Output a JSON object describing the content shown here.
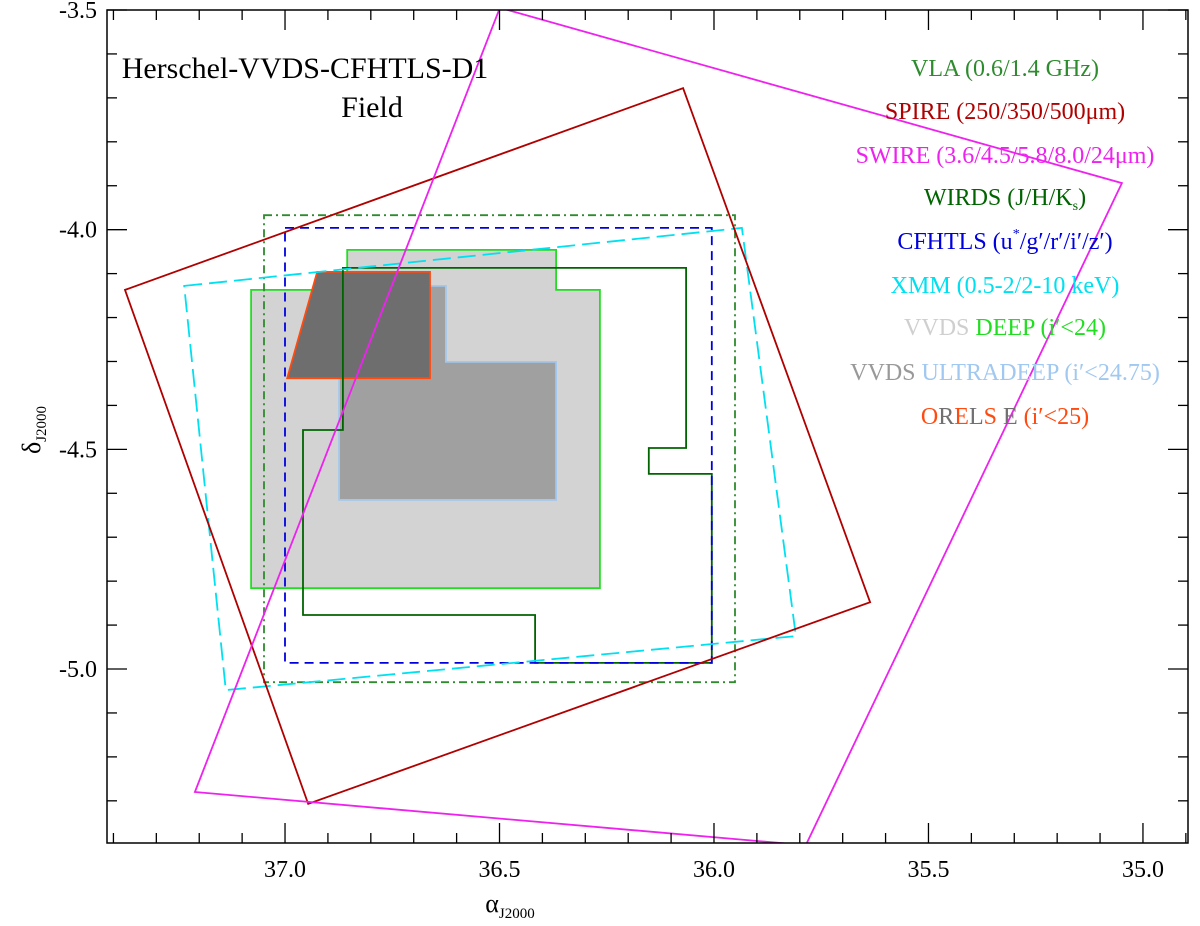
{
  "chart_data": {
    "type": "footprint-map",
    "title_lines": [
      "Herschel-VVDS-CFHTLS-D1",
      "Field"
    ],
    "xlabel": {
      "main": "α",
      "sub": "J2000"
    },
    "ylabel": {
      "main": "δ",
      "sub": "J2000"
    },
    "xlim": [
      37.415,
      34.895
    ],
    "ylim": [
      -5.396,
      -3.5
    ],
    "x_ticks": [
      37.0,
      36.5,
      36.0,
      35.5,
      35.0
    ],
    "x_tick_labels": [
      "37.0",
      "36.5",
      "36.0",
      "35.5",
      "35.0"
    ],
    "y_ticks": [
      -3.5,
      -4.0,
      -4.5,
      -5.0
    ],
    "y_tick_labels": [
      "-3.5",
      "-4.0",
      "-4.5",
      "-5.0"
    ],
    "minor_tick_step": 0.1,
    "grid": false,
    "legend_position": "top-right",
    "regions": [
      {
        "name": "vvds-deep",
        "fill": "#d3d3d3",
        "stroke": "#22dd22",
        "dash": "",
        "points": [
          [
            37.079,
            -4.137
          ],
          [
            36.855,
            -4.137
          ],
          [
            36.855,
            -4.046
          ],
          [
            36.368,
            -4.046
          ],
          [
            36.368,
            -4.137
          ],
          [
            36.266,
            -4.137
          ],
          [
            36.266,
            -4.816
          ],
          [
            37.079,
            -4.816
          ]
        ]
      },
      {
        "name": "vvds-ultradeep",
        "fill": "#a0a0a0",
        "stroke": "#a0c8f0",
        "dash": "",
        "points": [
          [
            36.874,
            -4.128
          ],
          [
            36.625,
            -4.128
          ],
          [
            36.625,
            -4.301
          ],
          [
            36.368,
            -4.301
          ],
          [
            36.368,
            -4.615
          ],
          [
            36.874,
            -4.615
          ]
        ]
      },
      {
        "name": "orelse",
        "fill": "#6e6e6e",
        "stroke": "#ff4a10",
        "dash": "",
        "points": [
          [
            36.925,
            -4.096
          ],
          [
            36.662,
            -4.096
          ],
          [
            36.662,
            -4.338
          ],
          [
            36.995,
            -4.338
          ]
        ]
      },
      {
        "name": "wirds",
        "fill": "none",
        "stroke": "#006400",
        "dash": "",
        "points": [
          [
            36.865,
            -4.087
          ],
          [
            36.065,
            -4.087
          ],
          [
            36.065,
            -4.497
          ],
          [
            36.152,
            -4.497
          ],
          [
            36.152,
            -4.556
          ],
          [
            36.005,
            -4.556
          ],
          [
            36.005,
            -4.986
          ],
          [
            36.417,
            -4.986
          ],
          [
            36.417,
            -4.877
          ],
          [
            36.958,
            -4.877
          ],
          [
            36.958,
            -4.456
          ],
          [
            36.865,
            -4.456
          ]
        ]
      },
      {
        "name": "vla",
        "fill": "none",
        "stroke": "#2e8b2e",
        "dash": "8 4 2 4",
        "points": [
          [
            37.049,
            -3.967
          ],
          [
            35.951,
            -3.967
          ],
          [
            35.951,
            -5.03
          ],
          [
            37.049,
            -5.03
          ]
        ]
      },
      {
        "name": "cfhtls",
        "fill": "none",
        "stroke": "#0000dd",
        "dash": "9 6",
        "points": [
          [
            37.0,
            -3.996
          ],
          [
            36.005,
            -3.996
          ],
          [
            36.005,
            -4.986
          ],
          [
            37.0,
            -4.986
          ]
        ]
      },
      {
        "name": "xmm",
        "fill": "none",
        "stroke": "#00e0f0",
        "dash": "18 7",
        "points": [
          [
            37.235,
            -4.128
          ],
          [
            35.935,
            -3.996
          ],
          [
            35.809,
            -4.925
          ],
          [
            37.138,
            -5.048
          ]
        ]
      },
      {
        "name": "spire",
        "fill": "none",
        "stroke": "#b00000",
        "dash": "",
        "points": [
          [
            37.373,
            -4.137
          ],
          [
            36.072,
            -3.678
          ],
          [
            35.636,
            -4.848
          ],
          [
            36.946,
            -5.307
          ]
        ]
      },
      {
        "name": "swire",
        "fill": "none",
        "stroke": "#ee22ee",
        "dash": "",
        "points": [
          [
            36.499,
            -3.495
          ],
          [
            35.049,
            -3.894
          ],
          [
            35.786,
            -5.401
          ],
          [
            37.21,
            -5.28
          ]
        ]
      }
    ],
    "legend": [
      {
        "parts": [
          {
            "text": "VLA (0.6/1.4 GHz)",
            "color": "#2e8b2e"
          }
        ]
      },
      {
        "parts": [
          {
            "text": "SPIRE (250/350/500μm)",
            "color": "#b00000"
          }
        ]
      },
      {
        "parts": [
          {
            "text": "SWIRE (3.6/4.5/5.8/8.0/24μm)",
            "color": "#ee22ee"
          }
        ]
      },
      {
        "parts": [
          {
            "text": "WIRDS (J/H/K",
            "color": "#006400"
          },
          {
            "text": "s",
            "color": "#006400",
            "sub": true
          },
          {
            "text": ")",
            "color": "#006400"
          }
        ]
      },
      {
        "parts": [
          {
            "text": "CFHTLS (u",
            "color": "#0000dd"
          },
          {
            "text": "*",
            "color": "#0000dd",
            "sup": true
          },
          {
            "text": "/g′/r′/i′/z′)",
            "color": "#0000dd"
          }
        ]
      },
      {
        "parts": [
          {
            "text": "XMM (0.5-2/2-10 keV)",
            "color": "#00e0f0"
          }
        ]
      },
      {
        "parts": [
          {
            "text": "VVDS ",
            "color": "#cfcfcf"
          },
          {
            "text": "DEEP (i′<24)",
            "color": "#22dd22"
          }
        ]
      },
      {
        "parts": [
          {
            "text": "VVDS ",
            "color": "#999999"
          },
          {
            "text": "ULTRADEEP (i′<24.75)",
            "color": "#a0c8f0"
          }
        ]
      },
      {
        "parts": [
          {
            "text": "O",
            "color": "#ff4a10"
          },
          {
            "text": "R",
            "color": "#707070"
          },
          {
            "text": "E",
            "color": "#ff4a10"
          },
          {
            "text": "L",
            "color": "#707070"
          },
          {
            "text": "S",
            "color": "#ff4a10"
          },
          {
            "text": " E  ",
            "color": "#707070"
          },
          {
            "text": "(i′<25)",
            "color": "#ff4a10"
          }
        ]
      }
    ]
  }
}
